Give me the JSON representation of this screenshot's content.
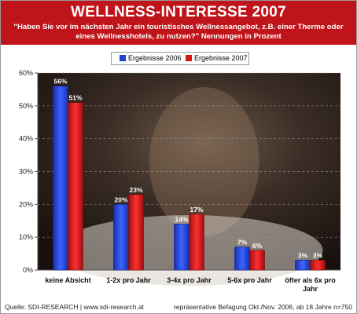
{
  "title": "WELLNESS-INTERESSE 2007",
  "subtitle": "\"Haben Sie vor im nächsten Jahr ein touristisches Wellnessangebot, z.B. einer Therme oder eines Wellnesshotels, zu nutzen?\" Nennungen in Prozent",
  "footer": {
    "source": "Quelle: SDI-RESEARCH | www.sdi-research.at",
    "note": "repräsentative Befagung Okt./Nov. 2006, ab 18 Jahre n=750"
  },
  "chart_data": {
    "type": "bar",
    "categories": [
      "keine Absicht",
      "1-2x pro Jahr",
      "3-4x pro Jahr",
      "5-6x pro Jahr",
      "öfter als 6x pro Jahr"
    ],
    "series": [
      {
        "name": "Ergebnisse 2006",
        "color": "#1f3fd6",
        "values": [
          56,
          20,
          14,
          7,
          3
        ],
        "labels": [
          "56%",
          "20%",
          "14%",
          "7%",
          "3%"
        ]
      },
      {
        "name": "Ergebnisse 2007",
        "color": "#d11818",
        "values": [
          51,
          23,
          17,
          6,
          3
        ],
        "labels": [
          "51%",
          "23%",
          "17%",
          "6%",
          "3%"
        ]
      }
    ],
    "ylim": [
      0,
      60
    ],
    "yticks": [
      "0%",
      "10%",
      "20%",
      "30%",
      "40%",
      "50%",
      "60%"
    ],
    "grid": true,
    "legend_position": "top"
  }
}
